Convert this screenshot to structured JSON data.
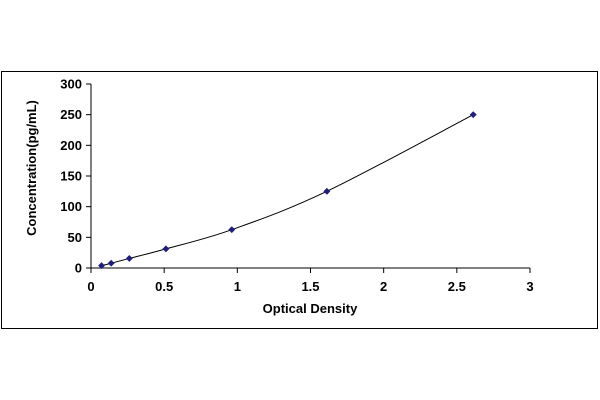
{
  "chart_data": {
    "type": "scatter",
    "title": "",
    "xlabel": "Optical Density",
    "ylabel": "Concentration(pg/mL)",
    "xlim": [
      0,
      3
    ],
    "ylim": [
      0,
      300
    ],
    "x_ticks": [
      0,
      0.5,
      1,
      1.5,
      2,
      2.5,
      3
    ],
    "x_tick_labels": [
      "0",
      "0.5",
      "1",
      "1.5",
      "2",
      "2.5",
      "3"
    ],
    "y_ticks": [
      0,
      50,
      100,
      150,
      200,
      250,
      300
    ],
    "y_tick_labels": [
      "0",
      "50",
      "100",
      "150",
      "200",
      "250",
      "300"
    ],
    "grid": false,
    "legend": "none",
    "trendline": "smooth-curve",
    "series": [
      {
        "points": [
          {
            "x": 0.072,
            "y": 3.9
          },
          {
            "x": 0.138,
            "y": 7.8
          },
          {
            "x": 0.262,
            "y": 15.6
          },
          {
            "x": 0.512,
            "y": 31.2
          },
          {
            "x": 0.962,
            "y": 62.5
          },
          {
            "x": 1.612,
            "y": 125
          },
          {
            "x": 2.612,
            "y": 250
          }
        ]
      }
    ],
    "marker_color": "#1f1f7a",
    "line_color": "#000000"
  }
}
